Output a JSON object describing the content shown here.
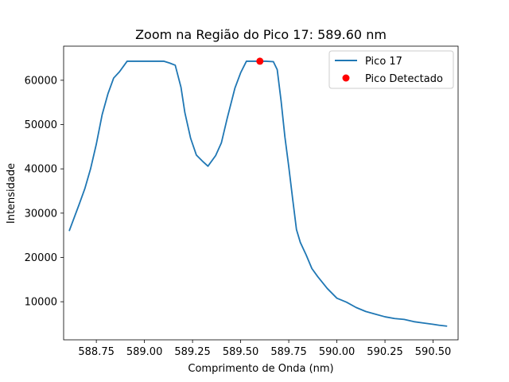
{
  "chart_data": {
    "type": "line",
    "title": "Zoom na Região do Pico 17: 589.60 nm",
    "xlabel": "Comprimento de Onda (nm)",
    "ylabel": "Intensidade",
    "xlim": [
      588.58,
      590.63
    ],
    "ylim": [
      1400,
      67700
    ],
    "xticks": [
      588.75,
      589.0,
      589.25,
      589.5,
      589.75,
      590.0,
      590.25,
      590.5
    ],
    "xtick_labels": [
      "588.75",
      "589.00",
      "589.25",
      "589.50",
      "589.75",
      "590.00",
      "590.25",
      "590.50"
    ],
    "yticks": [
      10000,
      20000,
      30000,
      40000,
      50000,
      60000
    ],
    "ytick_labels": [
      "10000",
      "20000",
      "30000",
      "40000",
      "50000",
      "60000"
    ],
    "grid": false,
    "legend_position": "top-right",
    "series": [
      {
        "name": "Pico 17",
        "kind": "line",
        "color": "#1f77b4",
        "x": [
          588.61,
          588.66,
          588.69,
          588.72,
          588.75,
          588.78,
          588.81,
          588.84,
          588.87,
          588.91,
          588.95,
          589.0,
          589.05,
          589.1,
          589.13,
          589.16,
          589.19,
          589.21,
          589.24,
          589.27,
          589.3,
          589.33,
          589.37,
          589.4,
          589.43,
          589.47,
          589.5,
          589.53,
          589.57,
          589.6,
          589.63,
          589.67,
          589.69,
          589.71,
          589.73,
          589.75,
          589.77,
          589.79,
          589.81,
          589.84,
          589.87,
          589.9,
          589.95,
          590.0,
          590.05,
          590.1,
          590.15,
          590.2,
          590.25,
          590.3,
          590.35,
          590.4,
          590.45,
          590.5,
          590.53,
          590.57
        ],
        "y": [
          26100,
          31900,
          35500,
          40000,
          45600,
          52200,
          56900,
          60500,
          61900,
          64300,
          64300,
          64300,
          64300,
          64300,
          63900,
          63400,
          58400,
          52700,
          46900,
          43100,
          41800,
          40600,
          43000,
          45900,
          51400,
          58200,
          61700,
          64300,
          64300,
          64300,
          64300,
          64200,
          62400,
          55400,
          47200,
          40500,
          33300,
          26300,
          23400,
          20600,
          17500,
          15700,
          13000,
          10800,
          9900,
          8700,
          7800,
          7200,
          6600,
          6200,
          6000,
          5500,
          5200,
          4900,
          4700,
          4500
        ]
      },
      {
        "name": "Pico Detectado",
        "kind": "scatter",
        "color": "#ff0000",
        "x": [
          589.6
        ],
        "y": [
          64300
        ]
      }
    ]
  }
}
